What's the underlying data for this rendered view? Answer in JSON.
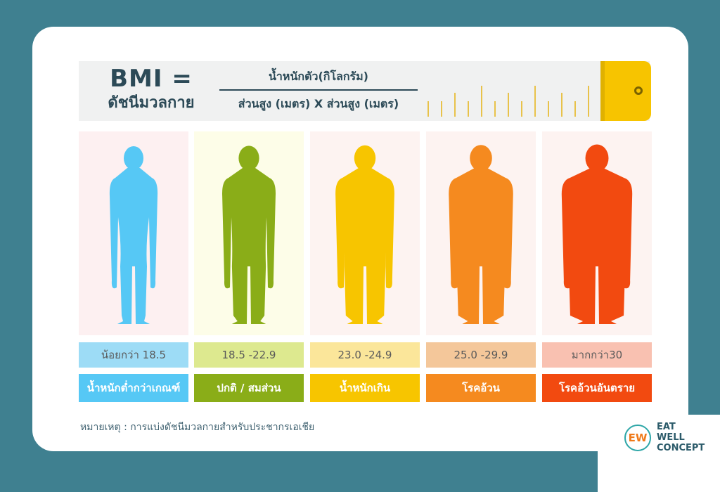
{
  "formula": {
    "title": "BMI =",
    "subtitle": "ดัชนีมวลกาย",
    "numerator": "น้ำหนักตัว(กิโลกรัม)",
    "denominator": "ส่วนสูง (เมตร) X ส่วนสูง (เมตร)"
  },
  "categories": [
    {
      "range": "น้อยกว่า 18.5",
      "label": "น้ำหนักต่ำกว่าเกณฑ์",
      "color": "#56c8f5",
      "range_bg": "#9ddcf6",
      "panel_bg": "#fdf0f1"
    },
    {
      "range": "18.5 -22.9",
      "label": "ปกติ / สมส่วน",
      "color": "#8aad18",
      "range_bg": "#dde98f",
      "panel_bg": "#fdfde8"
    },
    {
      "range": "23.0 -24.9",
      "label": "น้ำหนักเกิน",
      "color": "#f7c500",
      "range_bg": "#fbe69a",
      "panel_bg": "#fdf3f1"
    },
    {
      "range": "25.0 -29.9",
      "label": "โรคอ้วน",
      "color": "#f58a1f",
      "range_bg": "#f4c79a",
      "panel_bg": "#fdf3f1"
    },
    {
      "range": "มากกว่า30",
      "label": "โรคอ้วนอันตราย",
      "color": "#f24a10",
      "range_bg": "#f9c1b1",
      "panel_bg": "#fdf3f1"
    }
  ],
  "note": "หมายเหตุ : การแบ่งดัชนีมวลกายสำหรับประชากรเอเชีย",
  "brand": {
    "line1": "EAT",
    "line2": "WELL",
    "line3": "CONCEPT",
    "mark": "EW"
  }
}
